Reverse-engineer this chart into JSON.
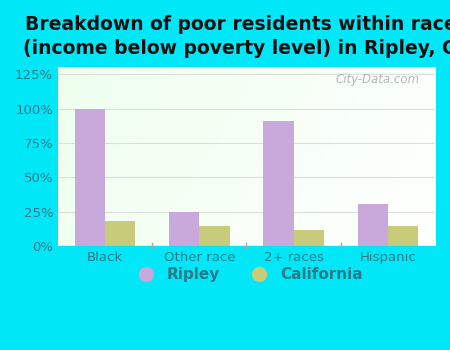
{
  "title": "Breakdown of poor residents within races\n(income below poverty level) in Ripley, CA",
  "categories": [
    "Black",
    "Other race",
    "2+ races",
    "Hispanic"
  ],
  "ripley_values": [
    100,
    25,
    91,
    31
  ],
  "california_values": [
    18,
    15,
    12,
    15
  ],
  "ripley_color": "#c9a8dc",
  "california_color": "#c8cc7a",
  "background_outer": "#00e8f8",
  "ylim": [
    0,
    130
  ],
  "yticks": [
    0,
    25,
    50,
    75,
    100,
    125
  ],
  "ytick_labels": [
    "0%",
    "25%",
    "50%",
    "75%",
    "100%",
    "125%"
  ],
  "bar_width": 0.32,
  "title_fontsize": 13.5,
  "tick_fontsize": 9.5,
  "legend_fontsize": 11,
  "tick_color": "#2a7a8a",
  "title_color": "#111111"
}
